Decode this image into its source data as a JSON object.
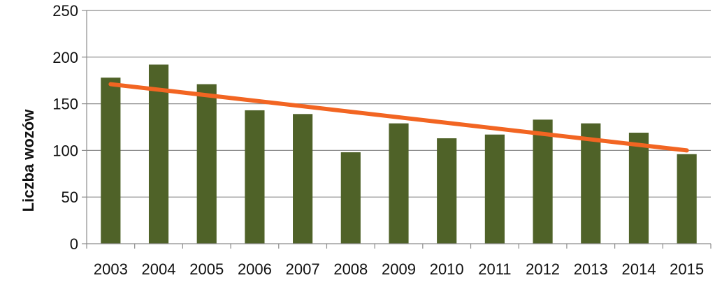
{
  "chart_data": {
    "type": "bar",
    "title": "",
    "xlabel": "",
    "ylabel": "Liczba wozów",
    "ylim": [
      0,
      250
    ],
    "yticks": [
      0,
      50,
      100,
      150,
      200,
      250
    ],
    "grid": true,
    "categories": [
      "2003",
      "2004",
      "2005",
      "2006",
      "2007",
      "2008",
      "2009",
      "2010",
      "2011",
      "2012",
      "2013",
      "2014",
      "2015"
    ],
    "series": [
      {
        "values": [
          178,
          192,
          171,
          143,
          139,
          98,
          129,
          113,
          117,
          133,
          129,
          119,
          96
        ],
        "color": "#4f6228"
      }
    ],
    "trendline": {
      "type": "linear",
      "start": 171,
      "end": 100,
      "color": "#f26522"
    }
  }
}
